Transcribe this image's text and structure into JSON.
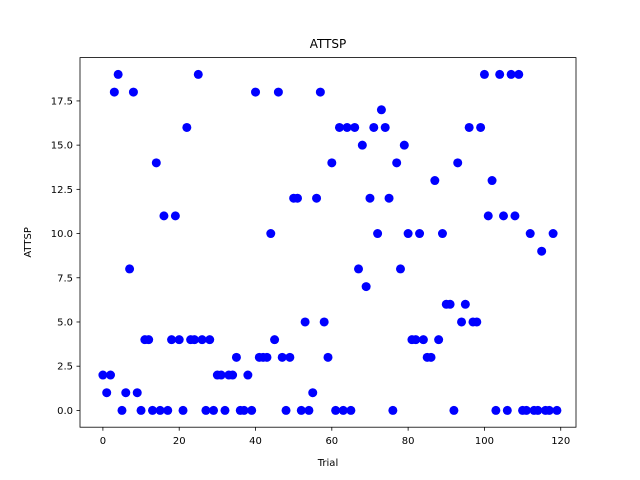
{
  "chart_data": {
    "type": "scatter",
    "title": "ATTSP",
    "xlabel": "Trial",
    "ylabel": "ATTSP",
    "xlim": [
      -6,
      124
    ],
    "ylim": [
      -0.95,
      19.95
    ],
    "xticks": [
      0,
      20,
      40,
      60,
      80,
      100,
      120
    ],
    "yticks": [
      0.0,
      2.5,
      5.0,
      7.5,
      10.0,
      12.5,
      15.0,
      17.5
    ],
    "ytick_labels": [
      "0.0",
      "2.5",
      "5.0",
      "7.5",
      "10.0",
      "12.5",
      "15.0",
      "17.5"
    ],
    "grid": false,
    "marker_color": "#0000ff",
    "series": [
      {
        "x": [
          0,
          1,
          2,
          3,
          4,
          5,
          6,
          7,
          8,
          9,
          10,
          11,
          12,
          13,
          14,
          15,
          16,
          17,
          18,
          19,
          20,
          21,
          22,
          23,
          24,
          25,
          26,
          27,
          28,
          29,
          30,
          31,
          32,
          33,
          34,
          35,
          36,
          37,
          38,
          39,
          40,
          41,
          42,
          43,
          44,
          45,
          46,
          47,
          48,
          49,
          50,
          51,
          52,
          53,
          54,
          55,
          56,
          57,
          58,
          59,
          60,
          61,
          62,
          63,
          64,
          65,
          66,
          67,
          68,
          69,
          70,
          71,
          72,
          73,
          74,
          75,
          76,
          77,
          78,
          79,
          80,
          81,
          82,
          83,
          84,
          85,
          86,
          87,
          88,
          89,
          90,
          91,
          92,
          93,
          94,
          95,
          96,
          97,
          98,
          99,
          100,
          101,
          102,
          103,
          104,
          105,
          106,
          107,
          108,
          109,
          110,
          111,
          112,
          113,
          114,
          115,
          116,
          117,
          118,
          119
        ],
        "y": [
          2,
          1,
          2,
          18,
          19,
          0,
          1,
          8,
          18,
          1,
          0,
          4,
          4,
          0,
          14,
          0,
          11,
          0,
          4,
          11,
          4,
          0,
          16,
          4,
          4,
          19,
          4,
          0,
          4,
          0,
          2,
          2,
          0,
          2,
          2,
          3,
          0,
          0,
          2,
          0,
          18,
          3,
          3,
          3,
          10,
          4,
          18,
          3,
          0,
          3,
          12,
          12,
          0,
          5,
          0,
          1,
          12,
          18,
          5,
          3,
          14,
          0,
          16,
          0,
          16,
          0,
          16,
          8,
          15,
          7,
          12,
          16,
          10,
          17,
          16,
          12,
          0,
          14,
          8,
          15,
          10,
          4,
          4,
          10,
          4,
          3,
          3,
          13,
          4,
          10,
          6,
          6,
          0,
          14,
          5,
          6,
          16,
          5,
          5,
          16,
          19,
          11,
          13,
          0,
          19,
          11,
          0,
          19,
          11,
          19,
          0,
          0,
          10,
          0,
          0,
          9,
          0,
          0,
          10,
          0
        ]
      }
    ]
  }
}
